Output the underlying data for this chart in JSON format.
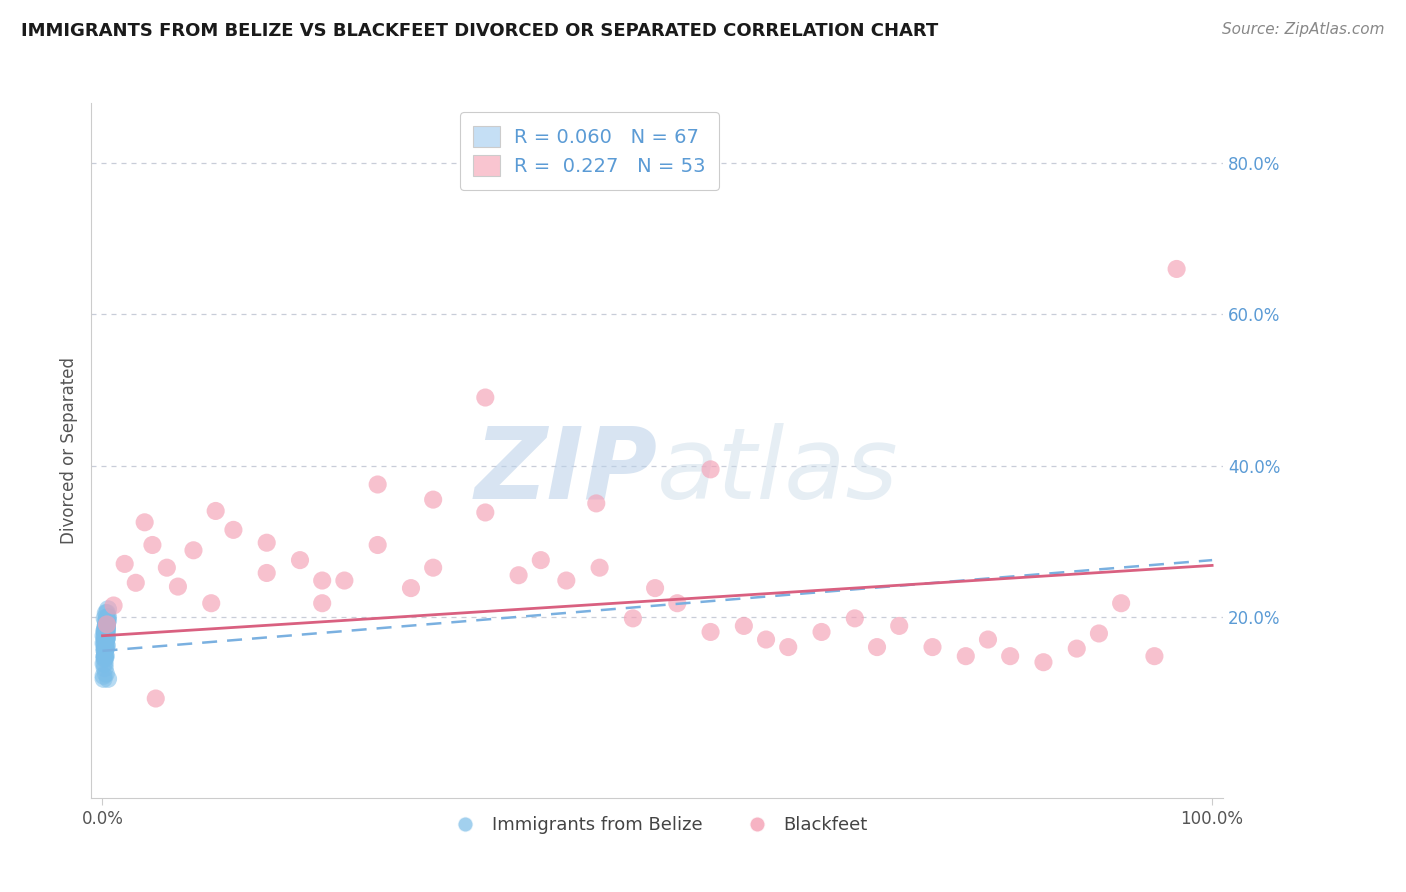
{
  "title": "IMMIGRANTS FROM BELIZE VS BLACKFEET DIVORCED OR SEPARATED CORRELATION CHART",
  "source": "Source: ZipAtlas.com",
  "ylabel": "Divorced or Separated",
  "legend_labels": [
    "Immigrants from Belize",
    "Blackfeet"
  ],
  "blue_R": 0.06,
  "blue_N": 67,
  "pink_R": 0.227,
  "pink_N": 53,
  "blue_color": "#7bbde8",
  "pink_color": "#f4a0b5",
  "legend_blue_face": "#c5dff5",
  "legend_pink_face": "#f9c5d0",
  "blue_trend_color": "#7ab0e0",
  "pink_trend_color": "#d96080",
  "grid_color": "#c8cdd8",
  "tick_label_color": "#5b9bd5",
  "title_color": "#1a1a1a",
  "source_color": "#888888",
  "ylabel_color": "#555555",
  "blue_scatter_x": [
    0.003,
    0.005,
    0.002,
    0.002,
    0.004,
    0.003,
    0.005,
    0.001,
    0.003,
    0.003,
    0.004,
    0.004,
    0.002,
    0.003,
    0.003,
    0.001,
    0.002,
    0.003,
    0.003,
    0.004,
    0.004,
    0.003,
    0.002,
    0.001,
    0.003,
    0.004,
    0.002,
    0.002,
    0.005,
    0.004,
    0.003,
    0.003,
    0.002,
    0.004,
    0.003,
    0.003,
    0.004,
    0.002,
    0.001,
    0.003,
    0.003,
    0.004,
    0.002,
    0.002,
    0.003,
    0.004,
    0.004,
    0.002,
    0.002,
    0.003,
    0.004,
    0.004,
    0.002,
    0.002,
    0.001,
    0.003,
    0.003,
    0.002,
    0.002,
    0.003,
    0.004,
    0.004,
    0.002,
    0.002,
    0.005,
    0.003,
    0.002
  ],
  "blue_scatter_y": [
    0.185,
    0.2,
    0.155,
    0.175,
    0.19,
    0.17,
    0.195,
    0.165,
    0.205,
    0.18,
    0.185,
    0.178,
    0.148,
    0.17,
    0.162,
    0.138,
    0.18,
    0.195,
    0.158,
    0.182,
    0.192,
    0.168,
    0.148,
    0.175,
    0.188,
    0.172,
    0.138,
    0.158,
    0.21,
    0.185,
    0.178,
    0.165,
    0.198,
    0.188,
    0.172,
    0.148,
    0.195,
    0.158,
    0.122,
    0.178,
    0.185,
    0.192,
    0.165,
    0.17,
    0.158,
    0.205,
    0.198,
    0.182,
    0.148,
    0.185,
    0.192,
    0.172,
    0.165,
    0.132,
    0.118,
    0.188,
    0.178,
    0.155,
    0.182,
    0.188,
    0.195,
    0.162,
    0.145,
    0.172,
    0.118,
    0.125,
    0.145
  ],
  "pink_scatter_x": [
    0.004,
    0.01,
    0.02,
    0.03,
    0.045,
    0.038,
    0.058,
    0.068,
    0.082,
    0.102,
    0.118,
    0.148,
    0.178,
    0.198,
    0.218,
    0.248,
    0.278,
    0.298,
    0.345,
    0.375,
    0.395,
    0.418,
    0.445,
    0.478,
    0.498,
    0.518,
    0.548,
    0.578,
    0.598,
    0.618,
    0.648,
    0.678,
    0.698,
    0.718,
    0.748,
    0.778,
    0.798,
    0.818,
    0.848,
    0.878,
    0.898,
    0.918,
    0.948,
    0.298,
    0.248,
    0.198,
    0.148,
    0.098,
    0.048,
    0.345,
    0.968,
    0.548,
    0.448
  ],
  "pink_scatter_y": [
    0.19,
    0.215,
    0.27,
    0.245,
    0.295,
    0.325,
    0.265,
    0.24,
    0.288,
    0.34,
    0.315,
    0.258,
    0.275,
    0.218,
    0.248,
    0.295,
    0.238,
    0.265,
    0.49,
    0.255,
    0.275,
    0.248,
    0.35,
    0.198,
    0.238,
    0.218,
    0.18,
    0.188,
    0.17,
    0.16,
    0.18,
    0.198,
    0.16,
    0.188,
    0.16,
    0.148,
    0.17,
    0.148,
    0.14,
    0.158,
    0.178,
    0.218,
    0.148,
    0.355,
    0.375,
    0.248,
    0.298,
    0.218,
    0.092,
    0.338,
    0.66,
    0.395,
    0.265
  ],
  "blue_trend_start": 0.155,
  "blue_trend_end": 0.275,
  "pink_trend_start": 0.175,
  "pink_trend_end": 0.268,
  "xlim_min": -0.01,
  "xlim_max": 1.01,
  "ylim_min": -0.04,
  "ylim_max": 0.88
}
